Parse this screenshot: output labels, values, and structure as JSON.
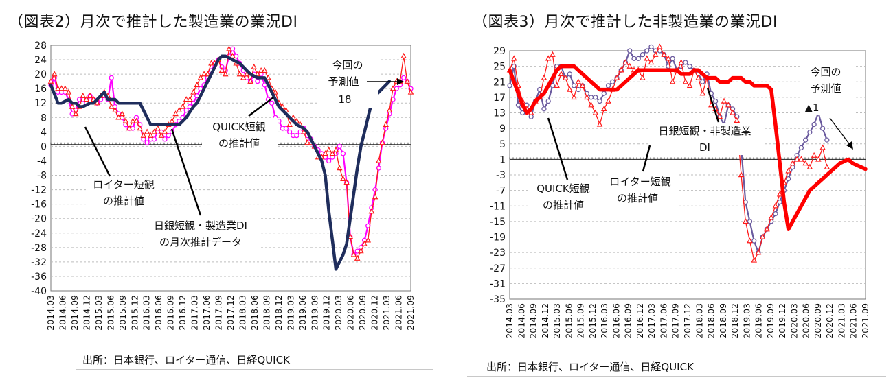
{
  "chart_data": [
    {
      "type": "line",
      "title": "（図表2）月次で推計した製造業の業況DI",
      "source": "出所：日本銀行、ロイター通信、日経QUICK",
      "ylim": [
        -40,
        28
      ],
      "yticks": [
        28,
        24,
        20,
        16,
        12,
        8,
        4,
        0,
        -4,
        -8,
        -12,
        -16,
        -20,
        -24,
        -28,
        -32,
        -36,
        -40
      ],
      "xtick_labels": [
        "2014.03",
        "2014.06",
        "2014.09",
        "2014.12",
        "2015.03",
        "2015.06",
        "2015.09",
        "2015.12",
        "2016.03",
        "2016.06",
        "2016.09",
        "2016.12",
        "2017.03",
        "2017.06",
        "2017.09",
        "2017.12",
        "2018.03",
        "2018.06",
        "2018.09",
        "2018.12",
        "2019.03",
        "2019.06",
        "2019.09",
        "2019.12",
        "2020.03",
        "2020.06",
        "2020.09",
        "2020.12",
        "2021.03",
        "2021.06",
        "2021.09"
      ],
      "series": [
        {
          "name": "日銀短観・製造業DIの月次推計データ",
          "color": "#1f2d5c",
          "values": [
            17,
            14.5,
            12,
            12,
            12.5,
            13,
            12,
            12,
            11,
            11,
            11.5,
            12,
            12,
            13,
            14,
            15,
            13,
            13,
            13,
            12,
            12,
            12,
            12,
            12,
            12,
            12,
            10,
            8,
            6,
            6,
            6,
            6,
            6,
            6,
            6,
            6,
            6,
            7,
            8,
            9.5,
            11,
            12,
            14,
            16,
            18,
            20,
            22,
            24,
            25,
            25,
            24.5,
            24,
            23.5,
            23,
            22,
            21,
            20,
            19.5,
            19,
            19,
            19,
            17,
            15,
            13,
            11,
            10,
            9,
            8,
            7,
            6,
            5.5,
            5,
            4,
            2,
            0,
            -2,
            -4,
            -8,
            -18,
            -26,
            -34,
            -32,
            -30,
            -27,
            -20,
            -13,
            -6,
            0,
            4,
            8,
            12,
            14,
            15,
            16,
            17,
            18
          ]
        },
        {
          "name": "QUICK短観の推計値",
          "color": "#ff00ff",
          "values": [
            17,
            19,
            15,
            15,
            15,
            13,
            9,
            10,
            13,
            13,
            12,
            14,
            13,
            12,
            13,
            14,
            13,
            19,
            11,
            9,
            8,
            6,
            5,
            5,
            8,
            6,
            2,
            1,
            2,
            2,
            4,
            4,
            2,
            3,
            4,
            6,
            7,
            8,
            10,
            11,
            12,
            14,
            16,
            17,
            19,
            21,
            23,
            24,
            22,
            21,
            25,
            27,
            25,
            23,
            21,
            19,
            18,
            20,
            18,
            20,
            17,
            13,
            12,
            8,
            7,
            5,
            5,
            4,
            3,
            3,
            4,
            5,
            3,
            2,
            0,
            -1,
            -2,
            -3,
            -4,
            -3,
            -2,
            0,
            -2,
            -10,
            -25,
            -30,
            -29,
            -28,
            -26,
            -22,
            -17,
            -12,
            -6,
            1,
            5,
            9,
            13,
            16,
            17,
            19,
            18,
            16
          ]
        },
        {
          "name": "ロイター短観の推計値",
          "color": "#ff1a1a",
          "values": [
            18,
            20,
            16,
            16,
            16,
            15,
            11,
            9,
            11,
            14,
            13,
            14,
            13,
            12,
            14,
            15,
            14,
            11,
            10,
            8,
            9,
            7,
            5,
            7,
            7,
            5,
            3,
            4,
            3,
            4,
            5,
            3,
            4,
            6,
            7,
            9,
            10,
            11,
            13,
            13,
            15,
            17,
            19,
            20,
            20,
            23,
            23,
            24,
            21,
            20,
            27,
            25,
            23,
            20,
            19,
            20,
            18,
            22,
            20,
            21,
            21,
            19,
            16,
            15,
            12,
            11,
            10,
            6,
            8,
            7,
            6,
            4,
            1,
            1,
            0,
            -3,
            -3,
            -2,
            -1,
            -2,
            -1,
            -6,
            -9,
            -10,
            -25,
            -30,
            -31,
            -29,
            -27,
            -26,
            -18,
            -14,
            -4,
            1,
            6,
            10,
            16,
            18,
            18,
            25,
            18,
            15
          ]
        }
      ],
      "annotations": {
        "yosoku": [
          "今回の",
          "予測値",
          "18"
        ],
        "quick": [
          "QUICK短観",
          "の推計値"
        ],
        "reuters": [
          "ロイター短観",
          "の推計値"
        ],
        "boj": [
          "日銀短観・製造業DI",
          "の月次推計データ"
        ]
      }
    },
    {
      "type": "line",
      "title": "（図表3）月次で推計した非製造業の業況DI",
      "source": "出所：日本銀行、ロイター通信、日経QUICK",
      "ylim": [
        -35,
        29
      ],
      "yticks": [
        29,
        25,
        21,
        17,
        13,
        9,
        5,
        1,
        -3,
        -7,
        -11,
        -15,
        -19,
        -23,
        -27,
        -31,
        -35
      ],
      "xtick_labels": [
        "2014.03",
        "2014.06",
        "2014.09",
        "2014.12",
        "2015.03",
        "2015.06",
        "2015.09",
        "2015.12",
        "2016.03",
        "2016.06",
        "2016.09",
        "2016.12",
        "2017.03",
        "2017.06",
        "2017.09",
        "2017.12",
        "2018.03",
        "2018.06",
        "2018.09",
        "2018.12",
        "2019.03",
        "2019.06",
        "2019.09",
        "2019.12",
        "2020.03",
        "2020.06",
        "2020.09",
        "2020.12",
        "2021.03",
        "2021.06",
        "2021.09"
      ],
      "series": [
        {
          "name": "日銀短観・非製造業DI",
          "color": "#ff0000",
          "values": [
            24,
            21,
            18,
            15,
            13,
            14,
            16,
            17,
            18,
            20,
            22,
            24,
            25,
            25,
            25,
            25,
            24,
            23,
            22,
            21,
            20,
            19,
            19,
            19,
            19,
            19,
            20,
            21,
            22,
            23,
            24,
            24,
            24,
            24,
            24,
            24,
            24,
            24,
            24,
            24,
            23,
            23,
            23,
            24,
            24,
            23,
            22,
            22,
            22,
            21,
            21,
            21,
            22,
            22,
            22,
            21,
            21,
            20,
            20,
            20,
            20,
            19,
            10,
            0,
            -10,
            -17,
            -15,
            -13,
            -11,
            -9,
            -7,
            -6,
            -5,
            -4,
            -3,
            -2,
            -1,
            0,
            0.5,
            1,
            0,
            -0.5,
            -1,
            -1.5
          ]
        },
        {
          "name": "QUICK短観の推計値",
          "color": "#6a5a9e",
          "values": [
            20,
            25,
            15,
            13,
            15,
            12,
            16,
            19,
            14,
            16,
            20,
            25,
            25,
            22,
            23,
            20,
            19,
            20,
            18,
            17,
            17,
            16,
            18,
            20,
            21,
            22,
            24,
            26,
            29,
            27,
            27,
            28,
            29,
            30,
            29,
            29,
            28,
            25,
            27,
            24,
            25,
            26,
            25,
            24,
            23,
            21,
            23,
            18,
            16,
            12,
            10,
            15,
            14,
            12,
            4,
            -10,
            -15,
            -20,
            -23,
            -19,
            -17,
            -15,
            -13,
            -10,
            -7,
            -4,
            -1,
            2,
            4,
            6,
            8,
            10,
            13,
            9,
            6
          ]
        },
        {
          "name": "ロイター短観の推計値",
          "color": "#ff1a1a",
          "values": [
            24,
            27,
            20,
            16,
            14,
            13,
            16,
            17,
            22,
            27,
            28,
            20,
            23,
            22,
            19,
            17,
            21,
            20,
            17,
            15,
            13,
            10,
            14,
            16,
            19,
            22,
            24,
            26,
            25,
            24,
            24,
            22,
            27,
            26,
            28,
            30,
            28,
            27,
            21,
            24,
            26,
            21,
            20,
            24,
            22,
            18,
            22,
            15,
            14,
            12,
            16,
            15,
            13,
            11,
            -3,
            -15,
            -20,
            -25,
            -23,
            -19,
            -17,
            -14,
            -11,
            -8,
            -5,
            -2,
            0,
            1,
            1,
            0,
            -1,
            2,
            1,
            4,
            -1
          ]
        }
      ],
      "annotations": {
        "yosoku": [
          "今回の",
          "予測値",
          "▲1"
        ],
        "boj": [
          "日銀短観・非製造業",
          "DI"
        ],
        "quick": [
          "QUICK短観",
          "の推計値"
        ],
        "reuters": [
          "ロイター短観",
          "の推計値"
        ]
      }
    }
  ]
}
